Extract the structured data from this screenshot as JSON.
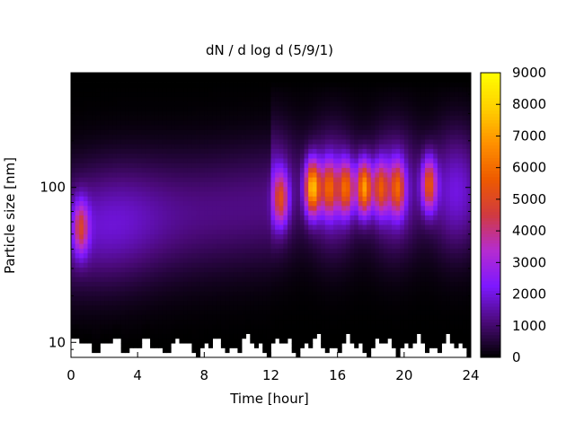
{
  "chart_data": {
    "type": "heatmap",
    "title": "dN / d log d (5/9/1)",
    "xlabel": "Time [hour]",
    "ylabel": "Particle size [nm]",
    "xlim": [
      0,
      24
    ],
    "ylim": [
      8,
      550
    ],
    "y_scale": "log",
    "x_ticks": [
      "0",
      "4",
      "8",
      "12",
      "16",
      "20",
      "24"
    ],
    "y_ticks": [
      "10",
      "100"
    ],
    "colorbar": {
      "range": [
        0,
        9000
      ],
      "ticks": [
        "0",
        "1000",
        "2000",
        "3000",
        "4000",
        "5000",
        "6000",
        "7000",
        "8000",
        "9000"
      ],
      "colormap": [
        "#000000",
        "#4b0a7a",
        "#7d18ff",
        "#b52cd0",
        "#d03a40",
        "#ee5a00",
        "#ff9000",
        "#ffd000",
        "#ffff00"
      ]
    },
    "features": [
      {
        "time_hour": 0.6,
        "size_nm": 55,
        "value": 4700
      },
      {
        "time_hour": 12.6,
        "size_nm": 85,
        "value": 5000
      },
      {
        "time_hour": 14.5,
        "size_nm": 100,
        "value": 8000
      },
      {
        "time_hour": 15.5,
        "size_nm": 100,
        "value": 5500
      },
      {
        "time_hour": 16.5,
        "size_nm": 100,
        "value": 6000
      },
      {
        "time_hour": 17.6,
        "size_nm": 100,
        "value": 7500
      },
      {
        "time_hour": 18.6,
        "size_nm": 100,
        "value": 5500
      },
      {
        "time_hour": 19.6,
        "size_nm": 100,
        "value": 5500
      },
      {
        "time_hour": 21.5,
        "size_nm": 105,
        "value": 6000
      }
    ]
  }
}
